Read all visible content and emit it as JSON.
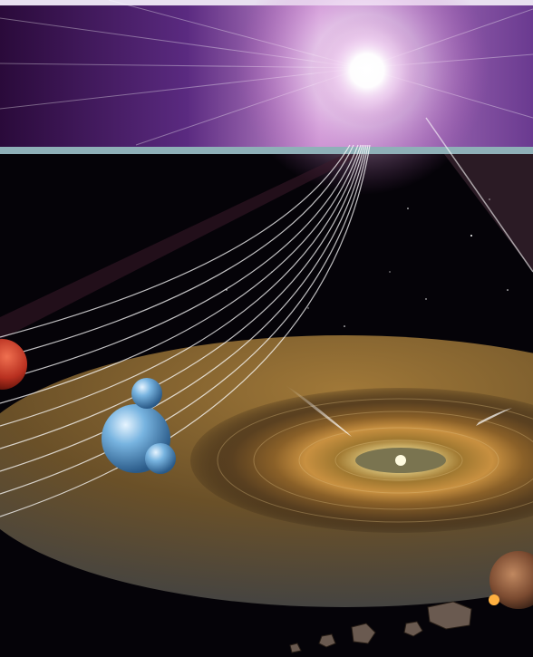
{
  "scene": {
    "subject": "space-illustration",
    "elements": [
      "bright-star",
      "light-rays",
      "red-planet",
      "water-molecule",
      "protoplanetary-disk",
      "comets",
      "asteroids",
      "rocky-planet"
    ],
    "colors": {
      "sky_top": "#3a1050",
      "star_glow": "#ffffff",
      "band": "#8fb0b8",
      "disk_warm": "#c8903a",
      "molecule": "#6aa8d8",
      "planet_red": "#c0392b"
    }
  }
}
